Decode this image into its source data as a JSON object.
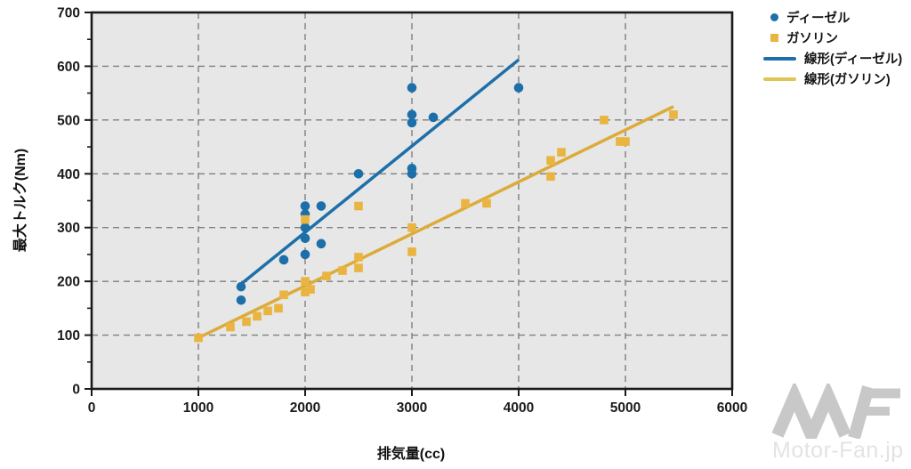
{
  "watermark": {
    "text": "Motor-Fan.jp"
  },
  "chart_data": {
    "type": "scatter",
    "title": "",
    "xlabel": "排気量(cc)",
    "ylabel": "最大トルク(Nm)",
    "xlim": [
      0,
      6000
    ],
    "ylim": [
      0,
      700
    ],
    "xticks": [
      0,
      1000,
      2000,
      3000,
      4000,
      5000,
      6000
    ],
    "yticks": [
      0,
      100,
      200,
      300,
      400,
      500,
      600,
      700
    ],
    "y_minor_tick_step": 50,
    "grid": "dashed-both",
    "plot_bg": "#e7e7e7",
    "grid_color": "#7f7f7f",
    "axis_color": "#1a1a1a",
    "legend_position": "outside-top-right",
    "series": [
      {
        "key": "diesel",
        "name": "ディーゼル",
        "type": "scatter",
        "marker": "circle",
        "color": "#1d6fa9",
        "points": [
          [
            1400,
            190
          ],
          [
            1400,
            165
          ],
          [
            1800,
            240
          ],
          [
            2000,
            340
          ],
          [
            2000,
            325
          ],
          [
            2000,
            300
          ],
          [
            2000,
            280
          ],
          [
            2000,
            250
          ],
          [
            2150,
            340
          ],
          [
            2150,
            270
          ],
          [
            2500,
            400
          ],
          [
            3000,
            560
          ],
          [
            3000,
            510
          ],
          [
            3000,
            495
          ],
          [
            3000,
            410
          ],
          [
            3000,
            400
          ],
          [
            3200,
            505
          ],
          [
            4000,
            560
          ]
        ]
      },
      {
        "key": "gasoline",
        "name": "ガソリン",
        "type": "scatter",
        "marker": "square",
        "color": "#e9b440",
        "points": [
          [
            1000,
            95
          ],
          [
            1300,
            115
          ],
          [
            1450,
            125
          ],
          [
            1550,
            135
          ],
          [
            1650,
            145
          ],
          [
            1750,
            150
          ],
          [
            1800,
            175
          ],
          [
            2000,
            180
          ],
          [
            2050,
            185
          ],
          [
            2000,
            200
          ],
          [
            2000,
            315
          ],
          [
            2200,
            210
          ],
          [
            2350,
            220
          ],
          [
            2500,
            225
          ],
          [
            2500,
            245
          ],
          [
            2500,
            340
          ],
          [
            3000,
            255
          ],
          [
            3000,
            300
          ],
          [
            3500,
            345
          ],
          [
            3700,
            345
          ],
          [
            4300,
            395
          ],
          [
            4300,
            425
          ],
          [
            4400,
            440
          ],
          [
            4800,
            500
          ],
          [
            4950,
            460
          ],
          [
            5000,
            460
          ],
          [
            5450,
            510
          ]
        ]
      },
      {
        "key": "diesel-trend",
        "name": "線形(ディーゼル)",
        "type": "line",
        "color": "#1d6fa9",
        "from": [
          1400,
          195
        ],
        "to": [
          4000,
          612
        ]
      },
      {
        "key": "gasoline-trend",
        "name": "線形(ガソリン)",
        "type": "line",
        "color": "#dcab39",
        "from": [
          1000,
          95
        ],
        "to": [
          5450,
          525
        ]
      }
    ],
    "legend": [
      {
        "label": "ディーゼル",
        "marker": "circle",
        "color": "#1d6fa9"
      },
      {
        "label": "ガソリン",
        "marker": "square",
        "color": "#e9b440"
      },
      {
        "label": "線形(ディーゼル)",
        "marker": "line",
        "color": "#1d6fa9"
      },
      {
        "label": "線形(ガソリン)",
        "marker": "line",
        "color": "#e0c455"
      }
    ]
  }
}
